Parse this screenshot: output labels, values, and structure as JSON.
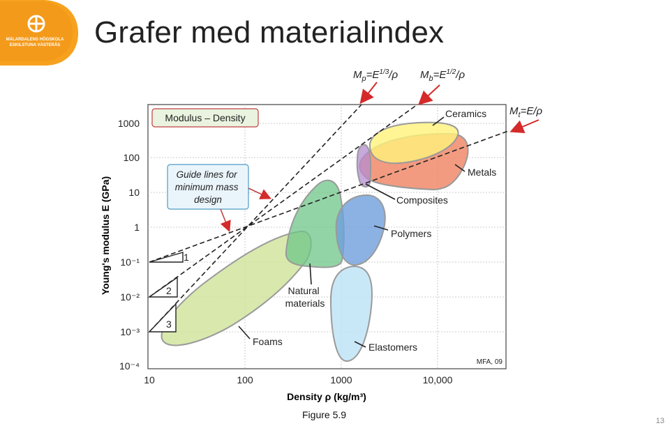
{
  "slide": {
    "title": "Grafer med materialindex",
    "logo_text": [
      "MÄLARDALENS HÖGSKOLA",
      "ESKILSTUNA VÄSTERÅS"
    ],
    "caption": "Figure 5.9",
    "page_number": "13"
  },
  "chart_data": {
    "type": "diagram",
    "title": "Modulus – Density",
    "xlabel": "Density ρ (kg/m³)",
    "ylabel": "Young's modulus E (GPa)",
    "x_scale": "log",
    "y_scale": "log",
    "xlim": [
      10,
      50000
    ],
    "ylim": [
      0.0001,
      3000
    ],
    "x_ticks": [
      "10",
      "100",
      "1000",
      "10,000"
    ],
    "y_ticks": [
      "1000",
      "100",
      "10",
      "1",
      "10⁻¹",
      "10⁻²",
      "10⁻³",
      "10⁻⁴"
    ],
    "grid": true,
    "guide_note": "Guide lines for minimum mass design",
    "credit": "MFA, 09",
    "material_families": [
      "Ceramics",
      "Metals",
      "Composites",
      "Polymers",
      "Natural materials",
      "Foams",
      "Elastomers"
    ],
    "slope_triangles": [
      "1",
      "2",
      "3"
    ],
    "index_labels": {
      "Mp": "Mp = E^1/3/ρ",
      "Mb": "Mb = E^1/2/ρ",
      "Mt": "Mt = E/ρ"
    },
    "colors": {
      "ceramics": "#fff27a",
      "metals": "#f08a6a",
      "composites": "#b58cd0",
      "polymers": "#6f9fdc",
      "natural": "#6fc688",
      "foams": "#cfe49a",
      "elastomers": "#bfe4f6",
      "arrow": "#d42a2a"
    }
  }
}
